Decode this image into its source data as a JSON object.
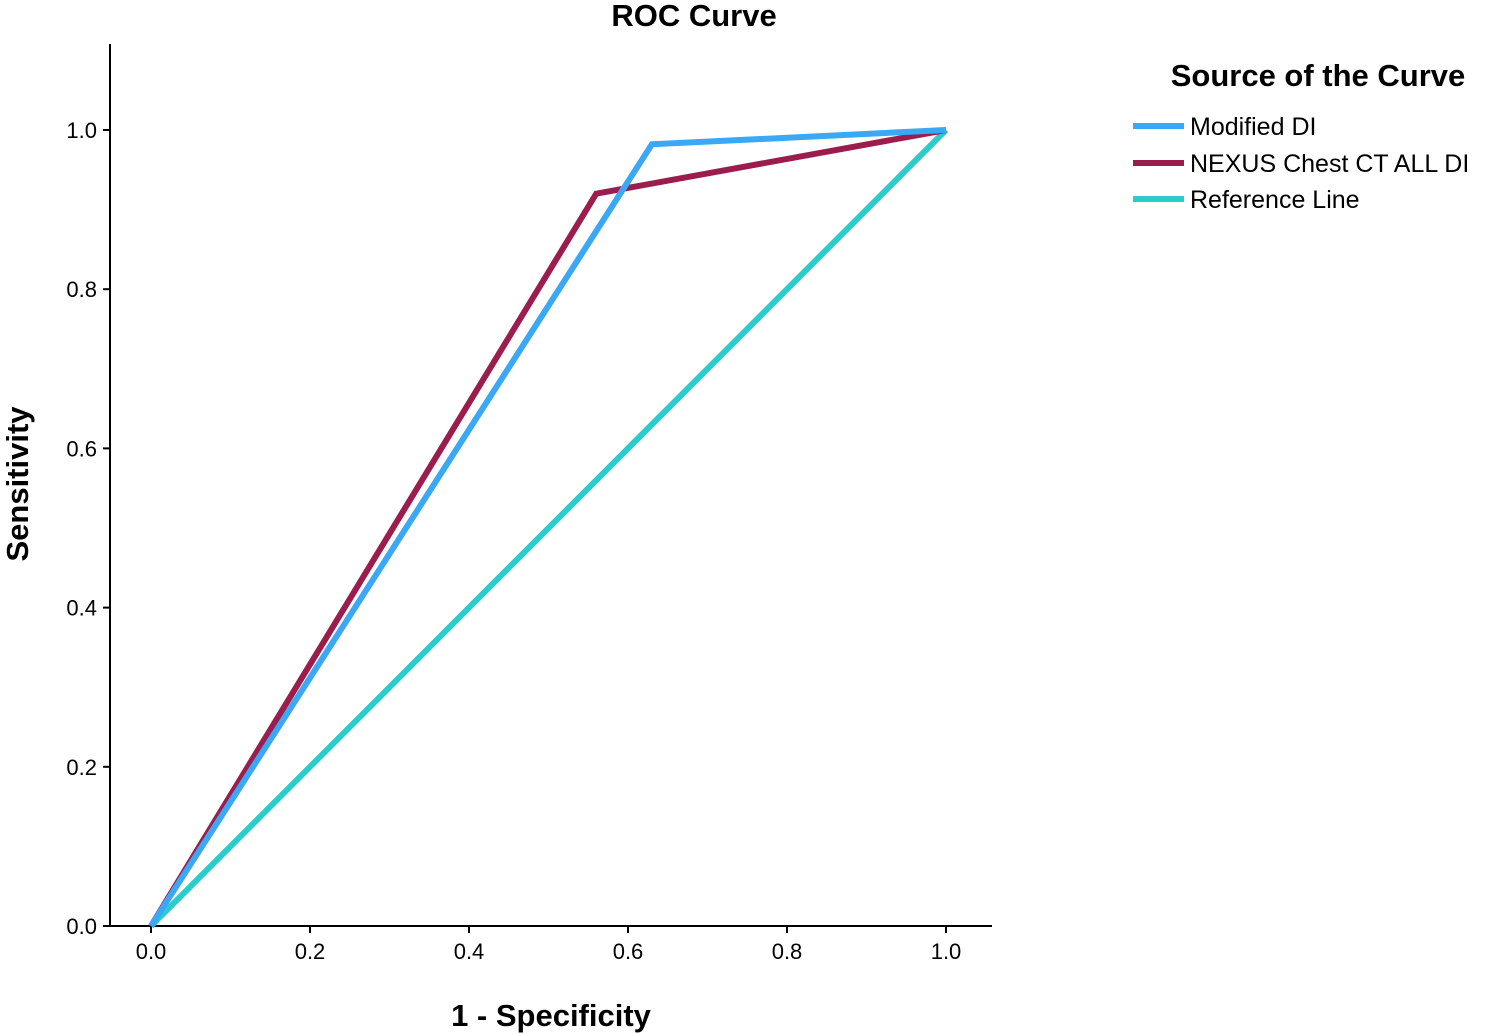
{
  "chart_data": {
    "type": "line",
    "title": "ROC Curve",
    "xlabel": "1 - Specificity",
    "ylabel": "Sensitivity",
    "xlim": [
      0,
      1
    ],
    "ylim": [
      0,
      1
    ],
    "x_ticks": [
      "0.0",
      "0.2",
      "0.4",
      "0.6",
      "0.8",
      "1.0"
    ],
    "y_ticks": [
      "0.0",
      "0.2",
      "0.4",
      "0.6",
      "0.8",
      "1.0"
    ],
    "grid": false,
    "legend": {
      "title": "Source of the Curve",
      "placement": "right"
    },
    "series": [
      {
        "name": "Modified DI",
        "color": "#3AA8F5",
        "x": [
          0.0,
          0.63,
          1.0
        ],
        "y": [
          0.0,
          0.982,
          1.0
        ]
      },
      {
        "name": "NEXUS Chest CT ALL DI",
        "color": "#9B1D4E",
        "x": [
          0.0,
          0.56,
          1.0
        ],
        "y": [
          0.0,
          0.92,
          1.0
        ]
      },
      {
        "name": "Reference Line",
        "color": "#2BCCCC",
        "x": [
          0.0,
          1.0
        ],
        "y": [
          0.0,
          1.0
        ]
      }
    ]
  }
}
